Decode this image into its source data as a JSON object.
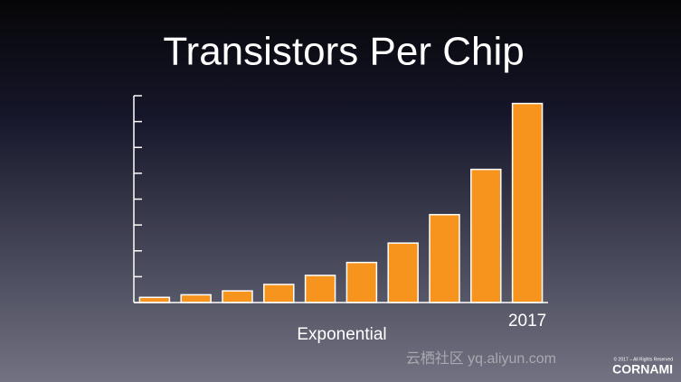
{
  "chart_data": {
    "type": "bar",
    "title": "Transistors Per Chip",
    "x_label": "Exponential",
    "categories": [
      null,
      null,
      null,
      null,
      null,
      null,
      null,
      null,
      null,
      "2017"
    ],
    "values": [
      0.2,
      0.3,
      0.45,
      0.7,
      1.05,
      1.55,
      2.3,
      3.4,
      5.15,
      7.7
    ],
    "color": "#f7941d",
    "ylim": [
      0,
      8
    ],
    "yticks": [
      0,
      1,
      2,
      3,
      4,
      5,
      6,
      7,
      8
    ]
  },
  "footer": {
    "watermark": "云栖社区 yq.aliyun.com",
    "copyright": "© 2017 – All Rights Reserved",
    "brand": "CORNAMI"
  }
}
